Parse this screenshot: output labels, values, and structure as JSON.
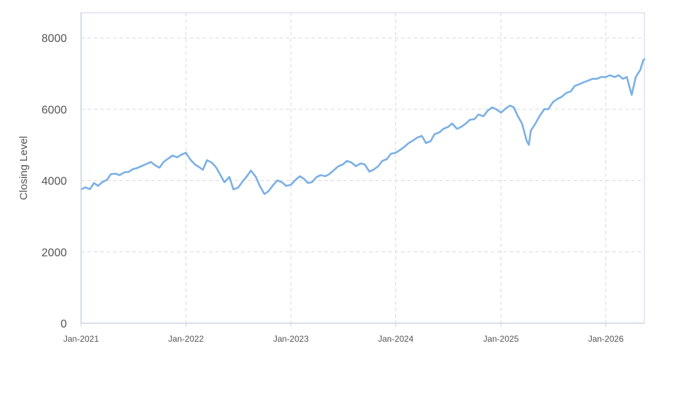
{
  "chart_data": {
    "type": "line",
    "ylabel": "Closing Level",
    "xlabel": "",
    "ylim": [
      0,
      8700
    ],
    "xlim": [
      "2021-01-01",
      "2026-05-15"
    ],
    "y_ticks": [
      0,
      2000,
      4000,
      6000,
      8000
    ],
    "y_tick_labels": [
      "0",
      "2000",
      "4000",
      "6000",
      "8000"
    ],
    "x_ticks": [
      "2021-01-01",
      "2022-01-01",
      "2023-01-01",
      "2024-01-01",
      "2025-01-01",
      "2026-01-01"
    ],
    "x_tick_labels": [
      "Jan-2021",
      "Jan-2022",
      "Jan-2023",
      "Jan-2024",
      "Jan-2025",
      "Jan-2026"
    ],
    "grid": true,
    "legend": "none",
    "colors": {
      "line": "#7ab0e4",
      "grid": "#d9d9d9",
      "axis": "#c9d3e3",
      "text": "#555555"
    },
    "series": [
      {
        "x": [
          "2021-01-01",
          "2021-01-15",
          "2021-02-01",
          "2021-02-15",
          "2021-03-01",
          "2021-03-15",
          "2021-04-01",
          "2021-04-15",
          "2021-05-01",
          "2021-05-15",
          "2021-06-01",
          "2021-06-15",
          "2021-07-01",
          "2021-07-15",
          "2021-08-01",
          "2021-08-15",
          "2021-09-01",
          "2021-09-15",
          "2021-10-01",
          "2021-10-15",
          "2021-11-01",
          "2021-11-15",
          "2021-12-01",
          "2021-12-15",
          "2022-01-01",
          "2022-01-15",
          "2022-02-01",
          "2022-02-15",
          "2022-03-01",
          "2022-03-15",
          "2022-04-01",
          "2022-04-15",
          "2022-05-01",
          "2022-05-15",
          "2022-06-01",
          "2022-06-15",
          "2022-07-01",
          "2022-07-15",
          "2022-08-01",
          "2022-08-15",
          "2022-09-01",
          "2022-09-15",
          "2022-10-01",
          "2022-10-15",
          "2022-11-01",
          "2022-11-15",
          "2022-12-01",
          "2022-12-15",
          "2023-01-01",
          "2023-01-15",
          "2023-02-01",
          "2023-02-15",
          "2023-03-01",
          "2023-03-15",
          "2023-04-01",
          "2023-04-15",
          "2023-05-01",
          "2023-05-15",
          "2023-06-01",
          "2023-06-15",
          "2023-07-01",
          "2023-07-15",
          "2023-08-01",
          "2023-08-15",
          "2023-09-01",
          "2023-09-15",
          "2023-10-01",
          "2023-10-15",
          "2023-11-01",
          "2023-11-15",
          "2023-12-01",
          "2023-12-15",
          "2024-01-01",
          "2024-01-15",
          "2024-02-01",
          "2024-02-15",
          "2024-03-01",
          "2024-03-15",
          "2024-04-01",
          "2024-04-15",
          "2024-05-01",
          "2024-05-15",
          "2024-06-01",
          "2024-06-15",
          "2024-07-01",
          "2024-07-15",
          "2024-08-01",
          "2024-08-15",
          "2024-09-01",
          "2024-09-15",
          "2024-10-01",
          "2024-10-15",
          "2024-11-01",
          "2024-11-15",
          "2024-12-01",
          "2024-12-15",
          "2025-01-01",
          "2025-01-15",
          "2025-02-01",
          "2025-02-15",
          "2025-03-01",
          "2025-03-15",
          "2025-04-01",
          "2025-04-08",
          "2025-04-15",
          "2025-05-01",
          "2025-05-15",
          "2025-06-01",
          "2025-06-15",
          "2025-07-01",
          "2025-07-15",
          "2025-08-01",
          "2025-08-15",
          "2025-09-01",
          "2025-09-15",
          "2025-10-01",
          "2025-10-15",
          "2025-11-01",
          "2025-11-15",
          "2025-12-01",
          "2025-12-15",
          "2026-01-01",
          "2026-01-15",
          "2026-02-01",
          "2026-02-15",
          "2026-03-01",
          "2026-03-15",
          "2026-03-25",
          "2026-04-01",
          "2026-04-15",
          "2026-05-01",
          "2026-05-10",
          "2026-05-15"
        ],
        "values": [
          3750,
          3810,
          3760,
          3930,
          3850,
          3950,
          4020,
          4180,
          4190,
          4150,
          4230,
          4240,
          4320,
          4350,
          4410,
          4460,
          4520,
          4430,
          4360,
          4520,
          4620,
          4700,
          4650,
          4720,
          4780,
          4600,
          4450,
          4380,
          4300,
          4570,
          4500,
          4380,
          4150,
          3950,
          4100,
          3750,
          3800,
          3950,
          4120,
          4280,
          4100,
          3850,
          3620,
          3700,
          3880,
          4000,
          3950,
          3850,
          3880,
          4000,
          4120,
          4050,
          3930,
          3950,
          4100,
          4150,
          4120,
          4180,
          4300,
          4400,
          4450,
          4550,
          4500,
          4400,
          4480,
          4450,
          4250,
          4300,
          4400,
          4550,
          4600,
          4750,
          4780,
          4850,
          4950,
          5050,
          5120,
          5200,
          5250,
          5050,
          5100,
          5300,
          5350,
          5450,
          5500,
          5600,
          5450,
          5500,
          5600,
          5700,
          5720,
          5850,
          5800,
          5950,
          6050,
          6000,
          5900,
          6000,
          6100,
          6050,
          5800,
          5600,
          5100,
          5000,
          5400,
          5600,
          5800,
          6000,
          6000,
          6200,
          6280,
          6350,
          6450,
          6500,
          6650,
          6700,
          6750,
          6800,
          6850,
          6850,
          6900,
          6900,
          6950,
          6900,
          6950,
          6850,
          6900,
          6600,
          6400,
          6900,
          7100,
          7350,
          7400
        ],
        "color": "#7ab0e4"
      }
    ]
  }
}
